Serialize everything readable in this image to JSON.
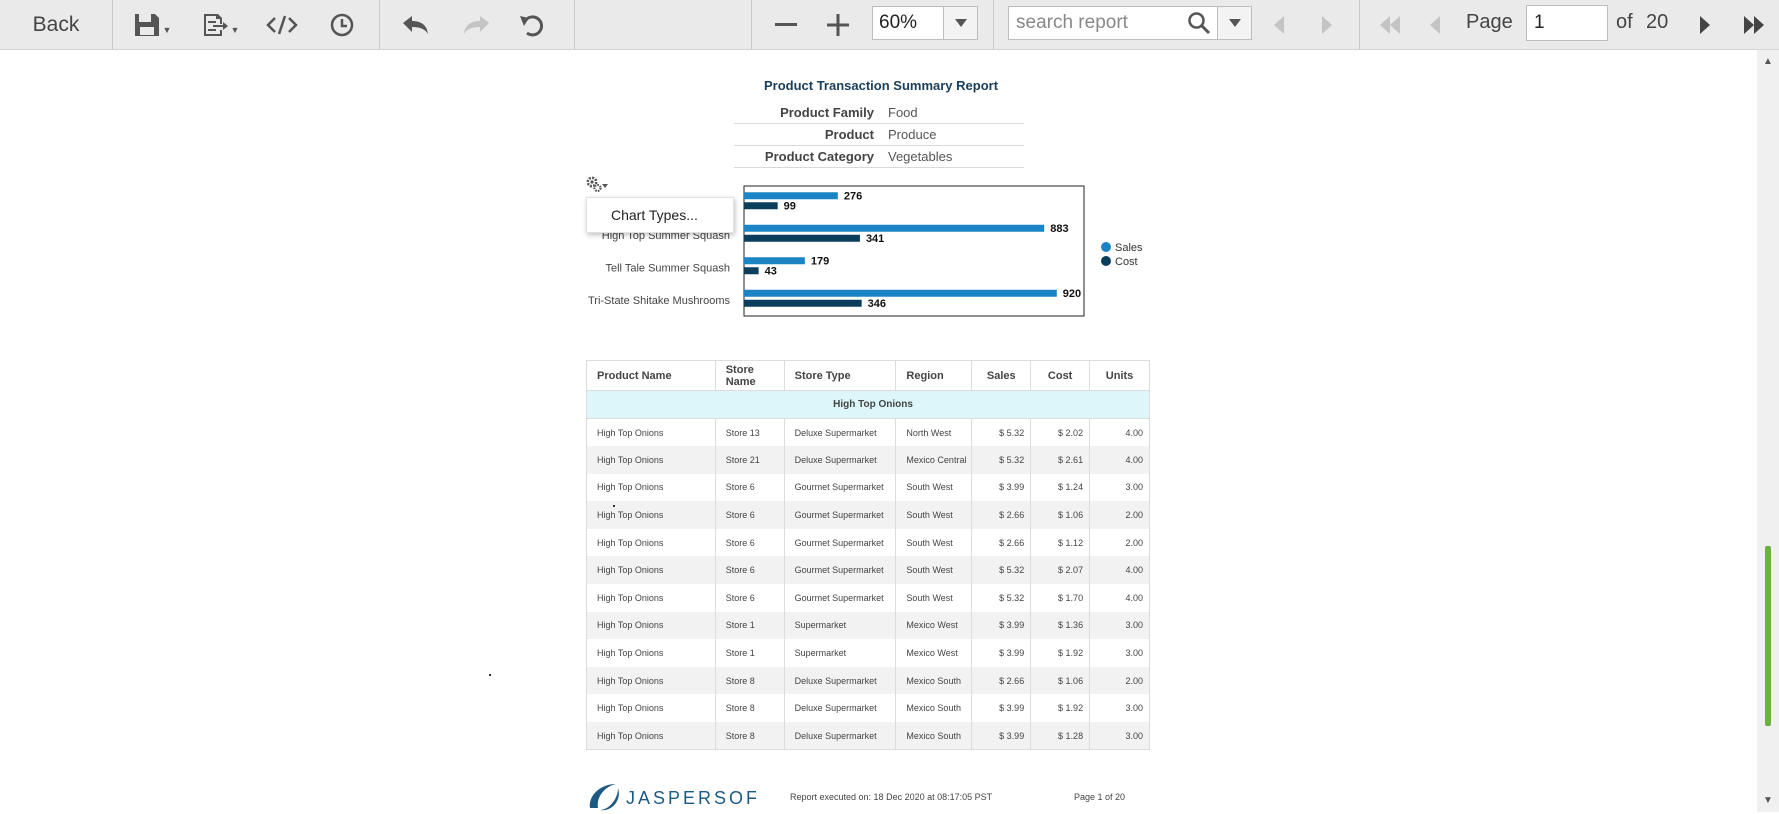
{
  "toolbar": {
    "back_label": "Back",
    "icons": [
      "save-icon",
      "export-icon",
      "code-icon",
      "clock-icon",
      "undo-icon",
      "redo-icon",
      "undo-all-icon",
      "zoom-out-icon",
      "zoom-in-icon",
      "search-icon",
      "first-page-icon",
      "previous-page-icon",
      "next-page-icon",
      "last-page-icon"
    ],
    "zoom_value": "60%",
    "search_placeholder": "search report",
    "page_label": "Page",
    "page_value": "1",
    "page_of": "of",
    "page_total": "20"
  },
  "report": {
    "title": "Product Transaction Summary Report",
    "params": [
      {
        "key": "Product Family",
        "value": "Food"
      },
      {
        "key": "Product",
        "value": "Produce"
      },
      {
        "key": "Product Category",
        "value": "Vegetables"
      }
    ],
    "chart_menu_item": "Chart Types...",
    "footer_exec": "Report executed on: 18 Dec 2020 at 08:17:05 PST",
    "footer_page": "Page 1 of 20",
    "logo_text": "JASPERSOFT"
  },
  "chart_data": {
    "type": "bar",
    "orientation": "horizontal",
    "categories": [
      "High Top Onions",
      "High Top Summer Squash",
      "Tell Tale Summer Squash",
      "Tri-State Shitake Mushrooms"
    ],
    "series": [
      {
        "name": "Sales",
        "values": [
          276,
          883,
          179,
          920
        ],
        "color": "#1a84c4"
      },
      {
        "name": "Cost",
        "values": [
          99,
          341,
          43,
          346
        ],
        "color": "#0b3d5c"
      }
    ],
    "xticks": [
      "0",
      "200",
      "400",
      "600",
      "800",
      "1,000"
    ],
    "xlim": [
      0,
      1000
    ],
    "legend_position": "right",
    "grid": false
  },
  "table": {
    "headers": [
      "Product Name",
      "Store Name",
      "Store Type",
      "Region",
      "Sales",
      "Cost",
      "Units"
    ],
    "group_label": "High Top Onions",
    "rows": [
      [
        "High Top Onions",
        "Store 13",
        "Deluxe Supermarket",
        "North West",
        "$ 5.32",
        "$ 2.02",
        "4.00"
      ],
      [
        "High Top Onions",
        "Store 21",
        "Deluxe Supermarket",
        "Mexico Central",
        "$ 5.32",
        "$ 2.61",
        "4.00"
      ],
      [
        "High Top Onions",
        "Store 6",
        "Gourmet Supermarket",
        "South West",
        "$ 3.99",
        "$ 1.24",
        "3.00"
      ],
      [
        "High Top Onions",
        "Store 6",
        "Gourmet Supermarket",
        "South West",
        "$ 2.66",
        "$ 1.06",
        "2.00"
      ],
      [
        "High Top Onions",
        "Store 6",
        "Gourmet Supermarket",
        "South West",
        "$ 2.66",
        "$ 1.12",
        "2.00"
      ],
      [
        "High Top Onions",
        "Store 6",
        "Gourmet Supermarket",
        "South West",
        "$ 5.32",
        "$ 2.07",
        "4.00"
      ],
      [
        "High Top Onions",
        "Store 6",
        "Gourmet Supermarket",
        "South West",
        "$ 5.32",
        "$ 1.70",
        "4.00"
      ],
      [
        "High Top Onions",
        "Store 1",
        "Supermarket",
        "Mexico West",
        "$ 3.99",
        "$ 1.36",
        "3.00"
      ],
      [
        "High Top Onions",
        "Store 1",
        "Supermarket",
        "Mexico West",
        "$ 3.99",
        "$ 1.92",
        "3.00"
      ],
      [
        "High Top Onions",
        "Store 8",
        "Deluxe Supermarket",
        "Mexico South",
        "$ 2.66",
        "$ 1.06",
        "2.00"
      ],
      [
        "High Top Onions",
        "Store 8",
        "Deluxe Supermarket",
        "Mexico South",
        "$ 3.99",
        "$ 1.92",
        "3.00"
      ],
      [
        "High Top Onions",
        "Store 8",
        "Deluxe Supermarket",
        "Mexico South",
        "$ 3.99",
        "$ 1.28",
        "3.00"
      ]
    ]
  }
}
